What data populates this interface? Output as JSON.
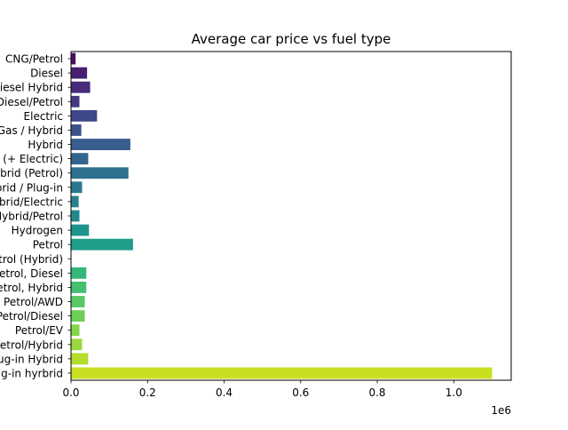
{
  "chart_data": {
    "type": "bar",
    "orientation": "horizontal",
    "title": "Average car price vs fuel type",
    "xlabel": "",
    "ylabel": "",
    "x_offset_label": "1e6",
    "xlim": [
      0,
      1150000
    ],
    "xticks": [
      0,
      200000,
      400000,
      600000,
      800000,
      1000000
    ],
    "xtick_labels": [
      "0.0",
      "0.2",
      "0.4",
      "0.6",
      "0.8",
      "1.0"
    ],
    "grid": false,
    "colormap": "viridis",
    "categories": [
      "CNG/Petrol",
      "Diesel",
      "Diesel Hybrid",
      "Diesel/Petrol",
      "Electric",
      "Gas / Hybrid",
      "Hybrid",
      "Hybrid (+ Electric)",
      "Hybrid (Petrol)",
      "Hybrid / Plug-in",
      "Hybrid/Electric",
      "Hybrid/Petrol",
      "Hydrogen",
      "Petrol",
      "Petrol (Hybrid)",
      "Petrol, Diesel",
      "Petrol, Hybrid",
      "Petrol/AWD",
      "Petrol/Diesel",
      "Petrol/EV",
      "Petrol/Hybrid",
      "Plug-in Hybrid",
      "Plug-in hyrbrid"
    ],
    "values": [
      12000,
      42000,
      50000,
      22000,
      68000,
      27000,
      155000,
      45000,
      150000,
      29000,
      20000,
      22000,
      47000,
      162000,
      1000,
      40000,
      40000,
      36000,
      36000,
      22000,
      29000,
      45000,
      1100000
    ],
    "colors": [
      "#471063",
      "#481f70",
      "#472b7a",
      "#443983",
      "#3f4889",
      "#3b518b",
      "#365d8d",
      "#32658e",
      "#2d718e",
      "#2a788e",
      "#26828e",
      "#23898e",
      "#1f948c",
      "#1f9e89",
      "#27ad81",
      "#35b779",
      "#44bf70",
      "#58c765",
      "#6ece58",
      "#85d54a",
      "#9ad93c",
      "#b3dc2b",
      "#c8e020"
    ]
  }
}
